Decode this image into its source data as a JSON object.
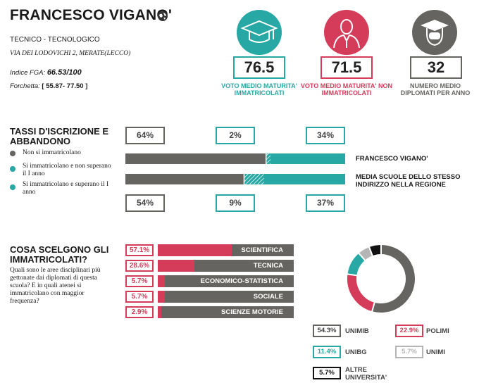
{
  "header": {
    "title": "FRANCESCO VIGANO'",
    "school_type": "TECNICO - TECNOLOGICO",
    "address": "VIA DEI LODOVICHI 2, MERATE(LECCO)",
    "fga_label": "Indice FGA:",
    "fga_value": "66.53/100",
    "forchetta_label": "Forchetta:",
    "forchetta_value": "[ 55.87- 77.50 ]"
  },
  "stats": [
    {
      "value": "76.5",
      "label": "VOTO MEDIO MATURITA' IMMATRICOLATI",
      "color": "#27a8a4",
      "icon": "graduation-cap-icon"
    },
    {
      "value": "71.5",
      "label": "VOTO MEDIO MATURITA' NON IMMATRICOLATI",
      "color": "#d43c5a",
      "icon": "person-icon"
    },
    {
      "value": "32",
      "label": "NUMERO MEDIO DIPLOMATI PER ANNO",
      "color": "#666460",
      "icon": "graduate-head-icon"
    }
  ],
  "iscrizione": {
    "title": "TASSI D'ISCRIZIONE E ABBANDONO",
    "legend": [
      {
        "label": "Non si immatricolano",
        "color": "#666460"
      },
      {
        "label": "Si immatricolano e non superano il I anno",
        "color": "#27a8a4"
      },
      {
        "label": "Si immatricolano e superano il I anno",
        "color": "#27a8a4"
      }
    ],
    "school": {
      "name": "FRANCESCO VIGANO'",
      "non": 64,
      "abb": 2,
      "sup": 34,
      "labels": [
        "64%",
        "2%",
        "34%"
      ]
    },
    "region": {
      "name": "MEDIA SCUOLE DELLO STESSO INDIRIZZO NELLA REGIONE",
      "non": 54,
      "abb": 9,
      "sup": 37,
      "labels": [
        "54%",
        "9%",
        "37%"
      ]
    }
  },
  "scelte": {
    "title": "COSA SCELGONO GLI IMMATRICOLATI?",
    "question": "Quali sono le aree disciplinari più gettonate dai diplomati di questa scuola? E in quali atenei si immatricolano con maggior frequenza?",
    "areas": [
      {
        "pct": "57.1%",
        "value": 57.1,
        "label": "SCIENTIFICA"
      },
      {
        "pct": "28.6%",
        "value": 28.6,
        "label": "TECNICA"
      },
      {
        "pct": "5.7%",
        "value": 5.7,
        "label": "ECONOMICO-STATISTICA"
      },
      {
        "pct": "5.7%",
        "value": 5.7,
        "label": "SOCIALE"
      },
      {
        "pct": "2.9%",
        "value": 2.9,
        "label": "SCIENZE MOTORIE"
      }
    ]
  },
  "chart_data": {
    "type": "pie",
    "categories": [
      "UNIMIB",
      "POLIMI",
      "UNIBG",
      "UNIMI",
      "ALTRE UNIVERSITA'"
    ],
    "values": [
      54.3,
      22.9,
      11.4,
      5.7,
      5.7
    ],
    "labels": [
      "54.3%",
      "22.9%",
      "11.4%",
      "5.7%",
      "5.7%"
    ],
    "colors": [
      "#666460",
      "#d43c5a",
      "#27a8a4",
      "#b5b5b5",
      "#111111"
    ]
  }
}
